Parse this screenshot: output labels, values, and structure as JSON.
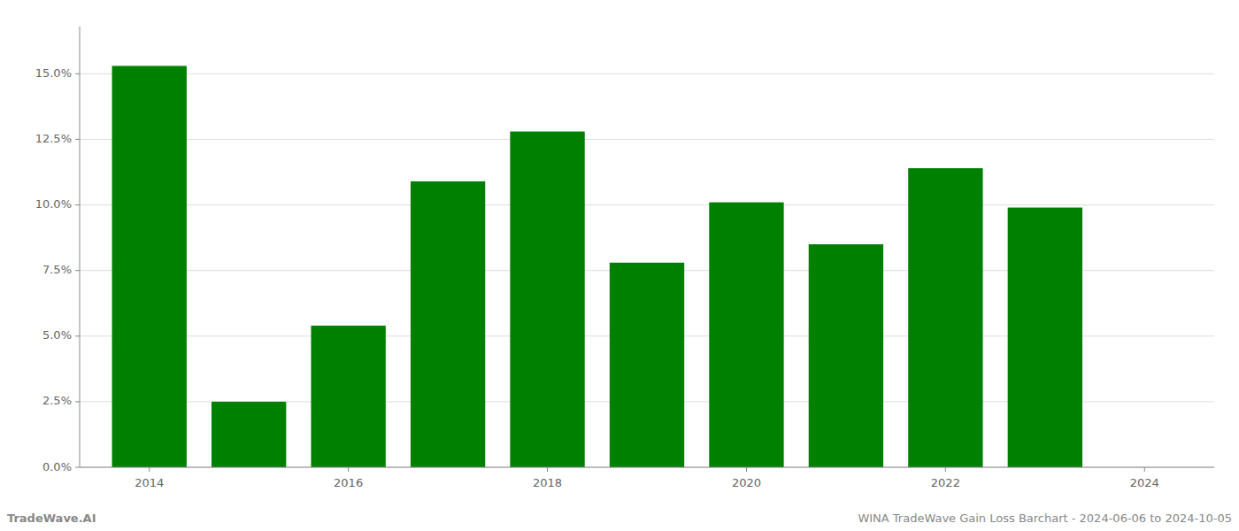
{
  "chart_data": {
    "type": "bar",
    "x": [
      2014,
      2015,
      2016,
      2017,
      2018,
      2019,
      2020,
      2021,
      2022,
      2023
    ],
    "values": [
      0.153,
      0.025,
      0.054,
      0.109,
      0.128,
      0.078,
      0.101,
      0.085,
      0.114,
      0.099
    ],
    "color": "#008000",
    "xlim": [
      2013.3,
      2024.7
    ],
    "xticks": [
      2014,
      2016,
      2018,
      2020,
      2022,
      2024
    ],
    "ylim": [
      0,
      0.168
    ],
    "yticks": [
      {
        "value": 0.0,
        "label": "0.0%"
      },
      {
        "value": 0.025,
        "label": "2.5%"
      },
      {
        "value": 0.05,
        "label": "5.0%"
      },
      {
        "value": 0.075,
        "label": "7.5%"
      },
      {
        "value": 0.1,
        "label": "10.0%"
      },
      {
        "value": 0.125,
        "label": "12.5%"
      },
      {
        "value": 0.15,
        "label": "15.0%"
      }
    ],
    "grid": true,
    "annotations": [
      "TradeWave.AI",
      "WINA TradeWave Gain Loss Barchart - 2024-06-06 to 2024-10-05"
    ]
  }
}
